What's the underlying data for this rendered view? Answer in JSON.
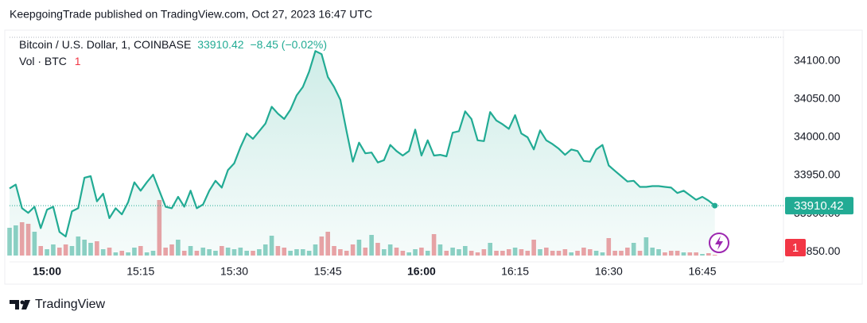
{
  "header": "KeepgoingTrade published on TradingView.com, Oct 27, 2023 16:47 UTC",
  "footer": "TradingView",
  "chart_data": {
    "type": "area",
    "title": "Bitcoin / U.S. Dollar, 1, COINBASE",
    "change": "−8.45 (−0.02%)",
    "color": "#22ab94",
    "x": [
      894,
      895,
      896,
      897,
      898,
      899,
      900,
      901,
      902,
      903,
      904,
      905,
      906,
      907,
      908,
      909,
      910,
      911,
      912,
      913,
      914,
      915,
      916,
      917,
      918,
      919,
      920,
      921,
      922,
      923,
      924,
      925,
      926,
      927,
      928,
      929,
      930,
      931,
      932,
      933,
      934,
      935,
      936,
      937,
      938,
      939,
      940,
      941,
      942,
      943,
      944,
      945,
      946,
      947,
      948,
      949,
      950,
      951,
      952,
      953,
      954,
      955,
      956,
      957,
      958,
      959,
      960,
      961,
      962,
      963,
      964,
      965,
      966,
      967,
      968,
      969,
      970,
      971,
      972,
      973,
      974,
      975,
      976,
      977,
      978,
      979,
      980,
      981,
      982,
      983,
      984,
      985,
      986,
      987,
      988,
      989,
      990,
      991,
      992,
      993,
      994,
      995,
      996,
      997,
      998,
      999,
      1000,
      1001,
      1002,
      1003,
      1004,
      1005,
      1006,
      1007
    ],
    "values": [
      33933,
      33938,
      33907,
      33901,
      33909,
      33881,
      33905,
      33909,
      33876,
      33870,
      33903,
      33907,
      33947,
      33949,
      33916,
      33926,
      33894,
      33907,
      33899,
      33915,
      33941,
      33930,
      33941,
      33951,
      33930,
      33909,
      33907,
      33922,
      33909,
      33930,
      33907,
      33912,
      33930,
      33943,
      33934,
      33957,
      33966,
      33987,
      34005,
      33998,
      34008,
      34018,
      34040,
      34031,
      34024,
      34036,
      34055,
      34066,
      34086,
      34113,
      34109,
      34079,
      34066,
      34049,
      34008,
      33968,
      33993,
      33979,
      33980,
      33967,
      33970,
      33990,
      33982,
      33976,
      33982,
      34010,
      33976,
      33996,
      33976,
      33977,
      33975,
      34006,
      34008,
      34034,
      34024,
      33996,
      33995,
      34033,
      34022,
      34017,
      34011,
      34029,
      34005,
      34000,
      33984,
      34009,
      33996,
      33991,
      33985,
      33977,
      33984,
      33982,
      33969,
      33968,
      33984,
      33990,
      33963,
      33956,
      33949,
      33942,
      33943,
      33935,
      33935,
      33936,
      33936,
      33935,
      33934,
      33927,
      33930,
      33924,
      33918,
      33922,
      33917,
      33910.42
    ],
    "xlim": [
      894,
      1018
    ],
    "xticks": [
      {
        "value": 900,
        "label": "15:00"
      },
      {
        "value": 915,
        "label": "15:15"
      },
      {
        "value": 930,
        "label": "15:30"
      },
      {
        "value": 945,
        "label": "15:45"
      },
      {
        "value": 960,
        "label": "16:00"
      },
      {
        "value": 975,
        "label": "16:15"
      },
      {
        "value": 990,
        "label": "16:30"
      },
      {
        "value": 1005,
        "label": "16:45"
      }
    ],
    "ylim": [
      33845,
      34131
    ],
    "yticks": [
      {
        "value": 33850,
        "label": "33850.00"
      },
      {
        "value": 33900,
        "label": "33900.00"
      },
      {
        "value": 33950,
        "label": "33950.00"
      },
      {
        "value": 34000,
        "label": "34000.00"
      },
      {
        "value": 34050,
        "label": "34050.00"
      },
      {
        "value": 34100,
        "label": "34100.00"
      }
    ],
    "grid": false,
    "volume": {
      "name": "Vol · BTC",
      "up_color": "#8fd1c5",
      "down_color": "#f0a2a6",
      "values": [
        35,
        38,
        42,
        40,
        30,
        12,
        8,
        14,
        10,
        14,
        12,
        24,
        20,
        16,
        18,
        8,
        10,
        4,
        6,
        4,
        10,
        12,
        4,
        6,
        70,
        10,
        14,
        20,
        6,
        12,
        6,
        10,
        8,
        6,
        12,
        10,
        8,
        10,
        6,
        6,
        8,
        14,
        25,
        12,
        10,
        6,
        8,
        8,
        6,
        14,
        24,
        30,
        12,
        8,
        6,
        14,
        20,
        10,
        26,
        16,
        8,
        14,
        10,
        6,
        4,
        8,
        10,
        6,
        27,
        14,
        6,
        10,
        8,
        12,
        6,
        4,
        8,
        16,
        6,
        6,
        8,
        10,
        8,
        6,
        20,
        8,
        10,
        6,
        6,
        8,
        4,
        6,
        10,
        8,
        6,
        4,
        22,
        6,
        6,
        10,
        16,
        6,
        23,
        10,
        8,
        4,
        6,
        6,
        4,
        4,
        4,
        2,
        3,
        1
      ]
    },
    "vol_ylim": [
      0,
      275
    ]
  }
}
